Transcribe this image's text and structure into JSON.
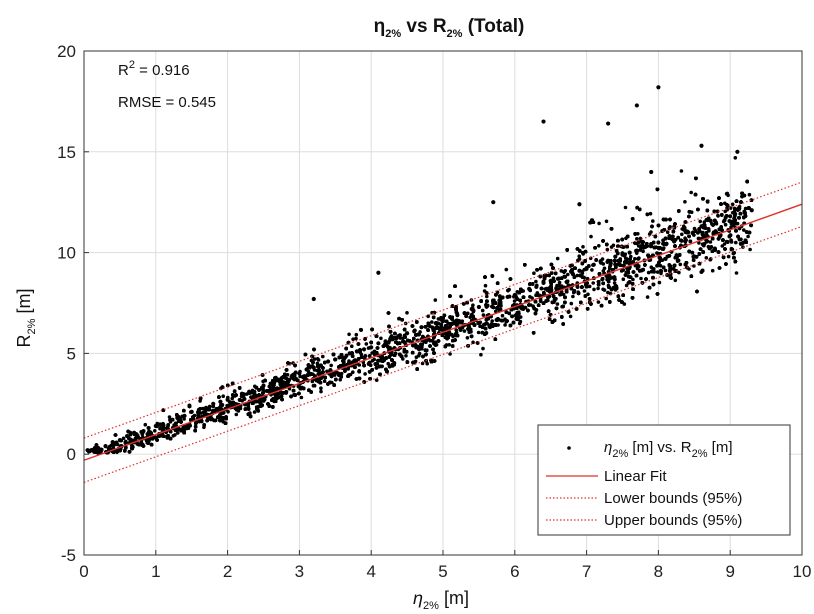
{
  "chart_data": {
    "type": "scatter",
    "title": {
      "base": "η",
      "sub": "2%",
      "mid": " vs R",
      "sub2": "2%",
      "tail": " (Total)"
    },
    "xlabel": {
      "base": "η",
      "sub": "2%",
      "tail": " [m]"
    },
    "ylabel": {
      "base": "R",
      "sub": "2%",
      "tail": " [m]"
    },
    "xlim": [
      0,
      10
    ],
    "ylim": [
      -5,
      20
    ],
    "xticks": [
      "0",
      "1",
      "2",
      "3",
      "4",
      "5",
      "6",
      "7",
      "8",
      "9",
      "10"
    ],
    "yticks": [
      "-5",
      "0",
      "5",
      "10",
      "15",
      "20"
    ],
    "grid": true,
    "annotations": {
      "r2": {
        "base": "R",
        "sup": "2",
        "tail": " = 0.916"
      },
      "rmse": "RMSE = 0.545"
    },
    "legend_position": "bottom-right",
    "series": [
      {
        "name": {
          "base": "η",
          "sub": "2%",
          "mid": " [m] vs. R",
          "sub2": "2%",
          "tail": " [m]"
        },
        "kind": "points",
        "color": "#000000",
        "x": [
          0.05,
          0.1,
          0.15,
          0.2,
          0.3,
          0.4,
          0.5,
          0.6,
          0.7,
          0.8,
          0.9,
          1.0,
          1.1,
          1.2,
          1.3,
          1.4,
          1.5,
          1.6,
          1.7,
          1.8,
          1.9,
          2.0,
          2.1,
          2.2,
          2.3,
          2.4,
          2.5,
          2.6,
          2.7,
          2.8,
          2.9,
          3.0,
          3.1,
          3.2,
          3.3,
          3.4,
          3.5,
          3.6,
          3.7,
          3.8,
          3.9,
          4.0,
          4.1,
          4.2,
          4.3,
          4.4,
          4.5,
          4.6,
          4.7,
          4.8,
          4.9,
          5.0,
          5.1,
          5.2,
          5.3,
          5.4,
          5.5,
          5.6,
          5.7,
          5.8,
          5.9,
          6.0,
          6.1,
          6.2,
          6.3,
          6.4,
          6.5,
          6.6,
          6.7,
          6.8,
          6.9,
          7.0,
          7.1,
          7.2,
          7.3,
          7.4,
          7.5,
          7.6,
          7.7,
          7.8,
          7.9,
          8.0,
          8.1,
          8.2,
          8.4,
          8.6,
          8.8,
          9.0,
          9.2,
          9.3,
          6.4,
          7.3,
          7.7,
          8.0,
          6.9,
          5.7,
          4.1,
          3.2,
          7.9,
          8.6,
          9.1
        ],
        "y": [
          0.2,
          0.2,
          0.3,
          0.3,
          0.4,
          0.6,
          0.7,
          0.9,
          1.0,
          1.1,
          1.3,
          1.4,
          1.5,
          1.7,
          1.8,
          1.9,
          2.1,
          2.2,
          2.3,
          2.5,
          2.6,
          2.7,
          2.9,
          3.0,
          3.1,
          3.3,
          3.4,
          3.5,
          3.7,
          3.8,
          3.9,
          4.0,
          4.2,
          4.3,
          4.4,
          4.6,
          4.7,
          4.8,
          5.0,
          5.1,
          5.2,
          5.3,
          5.5,
          5.6,
          5.7,
          5.9,
          6.0,
          6.1,
          6.3,
          6.4,
          6.5,
          6.6,
          6.8,
          6.9,
          7.0,
          7.2,
          7.3,
          7.4,
          7.5,
          7.7,
          7.8,
          7.9,
          8.1,
          8.2,
          8.3,
          8.5,
          8.6,
          8.7,
          8.8,
          9.0,
          9.1,
          9.2,
          9.4,
          9.5,
          9.6,
          9.8,
          9.9,
          10.0,
          10.1,
          10.3,
          10.4,
          10.5,
          10.7,
          10.8,
          11.0,
          11.3,
          11.5,
          11.8,
          12.0,
          12.1,
          16.5,
          16.4,
          17.3,
          18.2,
          12.4,
          12.5,
          9.0,
          7.7,
          14.0,
          15.3,
          15.0
        ]
      },
      {
        "name": "Linear Fit",
        "kind": "line",
        "color": "#e0302a",
        "style": "solid",
        "x": [
          0,
          10
        ],
        "y": [
          -0.3,
          12.4
        ]
      },
      {
        "name": "Lower bounds (95%)",
        "kind": "line",
        "color": "#e0302a",
        "style": "dotted",
        "x": [
          0,
          10
        ],
        "y": [
          -1.4,
          11.3
        ]
      },
      {
        "name": "Upper bounds (95%)",
        "kind": "line",
        "color": "#e0302a",
        "style": "dotted",
        "x": [
          0,
          10
        ],
        "y": [
          0.8,
          13.5
        ]
      }
    ]
  }
}
